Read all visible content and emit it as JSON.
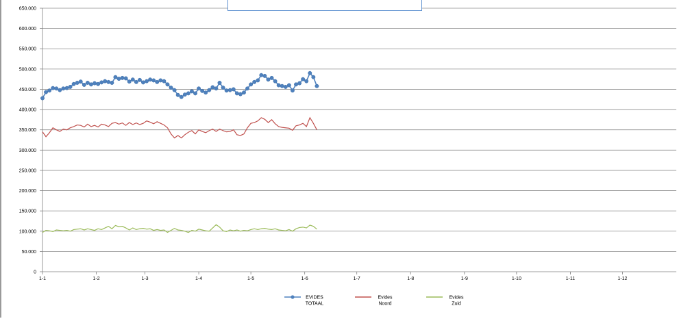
{
  "chart_data": {
    "type": "line",
    "title": "",
    "xlabel": "",
    "ylabel": "",
    "ylim": [
      0,
      650000
    ],
    "yticks": [
      0,
      50000,
      100000,
      150000,
      200000,
      250000,
      300000,
      350000,
      400000,
      450000,
      500000,
      550000,
      600000,
      650000
    ],
    "ytick_labels": [
      "0",
      "50.000",
      "100.000",
      "150.000",
      "200.000",
      "250.000",
      "300.000",
      "350.000",
      "400.000",
      "450.000",
      "500.000",
      "550.000",
      "600.000",
      "650.000"
    ],
    "x_tick_labels": [
      "1-1",
      "1-2",
      "1-3",
      "1-4",
      "1-5",
      "1-6",
      "1-7",
      "1-8",
      "1-9",
      "1-10",
      "1-11",
      "1-12"
    ],
    "x_unit": "day of year (1-1 = day 0)",
    "xlim": [
      0,
      365
    ],
    "grid": true,
    "legend_position": "bottom",
    "series": [
      {
        "name": [
          "EVIDES",
          "TOTAAL"
        ],
        "color": "#4f81bd",
        "marker": "circle",
        "points": [
          [
            0,
            428000
          ],
          [
            2,
            443000
          ],
          [
            4,
            447000
          ],
          [
            6,
            453000
          ],
          [
            8,
            452000
          ],
          [
            10,
            448000
          ],
          [
            12,
            452000
          ],
          [
            14,
            453000
          ],
          [
            16,
            456000
          ],
          [
            18,
            463000
          ],
          [
            20,
            466000
          ],
          [
            22,
            469000
          ],
          [
            24,
            461000
          ],
          [
            26,
            466000
          ],
          [
            28,
            462000
          ],
          [
            30,
            465000
          ],
          [
            32,
            463000
          ],
          [
            34,
            467000
          ],
          [
            36,
            470000
          ],
          [
            38,
            468000
          ],
          [
            40,
            466000
          ],
          [
            42,
            480000
          ],
          [
            44,
            476000
          ],
          [
            46,
            478000
          ],
          [
            48,
            477000
          ],
          [
            50,
            469000
          ],
          [
            52,
            474000
          ],
          [
            54,
            468000
          ],
          [
            56,
            473000
          ],
          [
            58,
            467000
          ],
          [
            60,
            470000
          ],
          [
            62,
            474000
          ],
          [
            64,
            472000
          ],
          [
            66,
            468000
          ],
          [
            68,
            472000
          ],
          [
            70,
            470000
          ],
          [
            72,
            462000
          ],
          [
            74,
            454000
          ],
          [
            76,
            448000
          ],
          [
            78,
            436000
          ],
          [
            80,
            431000
          ],
          [
            82,
            437000
          ],
          [
            84,
            440000
          ],
          [
            86,
            445000
          ],
          [
            88,
            440000
          ],
          [
            90,
            452000
          ],
          [
            92,
            446000
          ],
          [
            94,
            442000
          ],
          [
            96,
            448000
          ],
          [
            98,
            455000
          ],
          [
            100,
            452000
          ],
          [
            102,
            466000
          ],
          [
            104,
            454000
          ],
          [
            106,
            447000
          ],
          [
            108,
            448000
          ],
          [
            110,
            450000
          ],
          [
            112,
            440000
          ],
          [
            114,
            438000
          ],
          [
            116,
            442000
          ],
          [
            118,
            452000
          ],
          [
            120,
            462000
          ],
          [
            122,
            468000
          ],
          [
            124,
            472000
          ],
          [
            126,
            485000
          ],
          [
            128,
            483000
          ],
          [
            130,
            474000
          ],
          [
            132,
            478000
          ],
          [
            134,
            470000
          ],
          [
            136,
            460000
          ],
          [
            138,
            458000
          ],
          [
            140,
            456000
          ],
          [
            142,
            460000
          ],
          [
            144,
            447000
          ],
          [
            146,
            462000
          ],
          [
            148,
            465000
          ],
          [
            150,
            475000
          ],
          [
            152,
            470000
          ],
          [
            154,
            490000
          ],
          [
            156,
            480000
          ],
          [
            158,
            458000
          ]
        ]
      },
      {
        "name": [
          "Evides",
          "Noord"
        ],
        "color": "#c0504d",
        "marker": "none",
        "points": [
          [
            0,
            345000
          ],
          [
            2,
            333000
          ],
          [
            4,
            343000
          ],
          [
            6,
            355000
          ],
          [
            8,
            350000
          ],
          [
            10,
            346000
          ],
          [
            12,
            352000
          ],
          [
            14,
            350000
          ],
          [
            16,
            355000
          ],
          [
            18,
            358000
          ],
          [
            20,
            362000
          ],
          [
            22,
            361000
          ],
          [
            24,
            357000
          ],
          [
            26,
            364000
          ],
          [
            28,
            358000
          ],
          [
            30,
            361000
          ],
          [
            32,
            357000
          ],
          [
            34,
            364000
          ],
          [
            36,
            362000
          ],
          [
            38,
            358000
          ],
          [
            40,
            366000
          ],
          [
            42,
            368000
          ],
          [
            44,
            364000
          ],
          [
            46,
            367000
          ],
          [
            48,
            361000
          ],
          [
            50,
            368000
          ],
          [
            52,
            363000
          ],
          [
            54,
            367000
          ],
          [
            56,
            363000
          ],
          [
            58,
            366000
          ],
          [
            60,
            372000
          ],
          [
            62,
            369000
          ],
          [
            64,
            365000
          ],
          [
            66,
            370000
          ],
          [
            68,
            366000
          ],
          [
            70,
            362000
          ],
          [
            72,
            355000
          ],
          [
            74,
            340000
          ],
          [
            76,
            330000
          ],
          [
            78,
            336000
          ],
          [
            80,
            330000
          ],
          [
            82,
            338000
          ],
          [
            84,
            344000
          ],
          [
            86,
            348000
          ],
          [
            88,
            340000
          ],
          [
            90,
            350000
          ],
          [
            92,
            346000
          ],
          [
            94,
            343000
          ],
          [
            96,
            348000
          ],
          [
            98,
            352000
          ],
          [
            100,
            346000
          ],
          [
            102,
            352000
          ],
          [
            104,
            348000
          ],
          [
            106,
            345000
          ],
          [
            108,
            346000
          ],
          [
            110,
            350000
          ],
          [
            112,
            338000
          ],
          [
            114,
            336000
          ],
          [
            116,
            340000
          ],
          [
            118,
            355000
          ],
          [
            120,
            366000
          ],
          [
            122,
            368000
          ],
          [
            124,
            372000
          ],
          [
            126,
            380000
          ],
          [
            128,
            376000
          ],
          [
            130,
            368000
          ],
          [
            132,
            375000
          ],
          [
            134,
            365000
          ],
          [
            136,
            358000
          ],
          [
            138,
            356000
          ],
          [
            140,
            355000
          ],
          [
            142,
            354000
          ],
          [
            144,
            349000
          ],
          [
            146,
            360000
          ],
          [
            148,
            362000
          ],
          [
            150,
            366000
          ],
          [
            152,
            358000
          ],
          [
            154,
            380000
          ],
          [
            156,
            366000
          ],
          [
            158,
            350000
          ]
        ]
      },
      {
        "name": [
          "Evides",
          "Zuid"
        ],
        "color": "#9bbb59",
        "marker": "none",
        "points": [
          [
            0,
            97000
          ],
          [
            2,
            102000
          ],
          [
            4,
            101000
          ],
          [
            6,
            99000
          ],
          [
            8,
            103000
          ],
          [
            10,
            102000
          ],
          [
            12,
            101000
          ],
          [
            14,
            102000
          ],
          [
            16,
            100000
          ],
          [
            18,
            104000
          ],
          [
            20,
            105000
          ],
          [
            22,
            106000
          ],
          [
            24,
            103000
          ],
          [
            26,
            106000
          ],
          [
            28,
            104000
          ],
          [
            30,
            102000
          ],
          [
            32,
            106000
          ],
          [
            34,
            104000
          ],
          [
            36,
            108000
          ],
          [
            38,
            112000
          ],
          [
            40,
            106000
          ],
          [
            42,
            114000
          ],
          [
            44,
            111000
          ],
          [
            46,
            112000
          ],
          [
            48,
            108000
          ],
          [
            50,
            103000
          ],
          [
            52,
            108000
          ],
          [
            54,
            104000
          ],
          [
            56,
            106000
          ],
          [
            58,
            107000
          ],
          [
            60,
            105000
          ],
          [
            62,
            106000
          ],
          [
            64,
            102000
          ],
          [
            66,
            104000
          ],
          [
            68,
            102000
          ],
          [
            70,
            103000
          ],
          [
            72,
            97000
          ],
          [
            74,
            102000
          ],
          [
            76,
            107000
          ],
          [
            78,
            103000
          ],
          [
            80,
            102000
          ],
          [
            82,
            100000
          ],
          [
            84,
            97000
          ],
          [
            86,
            102000
          ],
          [
            88,
            100000
          ],
          [
            90,
            105000
          ],
          [
            92,
            103000
          ],
          [
            94,
            101000
          ],
          [
            96,
            100000
          ],
          [
            98,
            108000
          ],
          [
            100,
            116000
          ],
          [
            102,
            110000
          ],
          [
            104,
            101000
          ],
          [
            106,
            99000
          ],
          [
            108,
            103000
          ],
          [
            110,
            101000
          ],
          [
            112,
            103000
          ],
          [
            114,
            100000
          ],
          [
            116,
            102000
          ],
          [
            118,
            101000
          ],
          [
            120,
            104000
          ],
          [
            122,
            106000
          ],
          [
            124,
            104000
          ],
          [
            126,
            106000
          ],
          [
            128,
            107000
          ],
          [
            130,
            105000
          ],
          [
            132,
            104000
          ],
          [
            134,
            106000
          ],
          [
            136,
            103000
          ],
          [
            138,
            102000
          ],
          [
            140,
            101000
          ],
          [
            142,
            104000
          ],
          [
            144,
            100000
          ],
          [
            146,
            106000
          ],
          [
            148,
            109000
          ],
          [
            150,
            110000
          ],
          [
            152,
            108000
          ],
          [
            154,
            115000
          ],
          [
            156,
            112000
          ],
          [
            158,
            105000
          ]
        ]
      }
    ]
  }
}
